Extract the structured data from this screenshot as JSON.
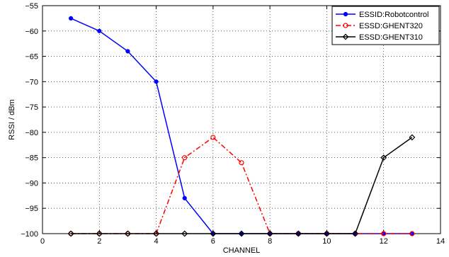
{
  "chart_data": {
    "type": "line",
    "title": "",
    "xlabel": "CHANNEL",
    "ylabel": "RSSI / dBm",
    "xlim": [
      0,
      14
    ],
    "ylim": [
      -100,
      -55
    ],
    "xticks": [
      0,
      2,
      4,
      6,
      8,
      10,
      12,
      14
    ],
    "yticks": [
      -55,
      -60,
      -65,
      -70,
      -75,
      -80,
      -85,
      -90,
      -95,
      -100
    ],
    "grid": true,
    "legend_position": "top-right",
    "series": [
      {
        "name": "ESSID:Robotcontrol",
        "color": "#0000ff",
        "line_style": "solid",
        "marker": "dot",
        "x": [
          1,
          2,
          3,
          4,
          5,
          6,
          7,
          8,
          9,
          10,
          11,
          12,
          13
        ],
        "y": [
          -57.5,
          -60,
          -64,
          -70,
          -93,
          -100,
          -100,
          -100,
          -100,
          -100,
          -100,
          -100,
          -100
        ]
      },
      {
        "name": "ESSD:GHENT320",
        "color": "#ff0000",
        "line_style": "dash-dot",
        "marker": "circle",
        "x": [
          1,
          2,
          3,
          4,
          5,
          6,
          7,
          8,
          9,
          10,
          11,
          12,
          13
        ],
        "y": [
          -100,
          -100,
          -100,
          -100,
          -85,
          -81,
          -86,
          -100,
          -100,
          -100,
          -100,
          -100,
          -100
        ]
      },
      {
        "name": "ESSD:GHENT310",
        "color": "#000000",
        "line_style": "solid",
        "marker": "diamond",
        "x": [
          1,
          2,
          3,
          4,
          5,
          6,
          7,
          8,
          9,
          10,
          11,
          12,
          13
        ],
        "y": [
          -100,
          -100,
          -100,
          -100,
          -100,
          -100,
          -100,
          -100,
          -100,
          -100,
          -100,
          -85,
          -81
        ]
      }
    ]
  }
}
